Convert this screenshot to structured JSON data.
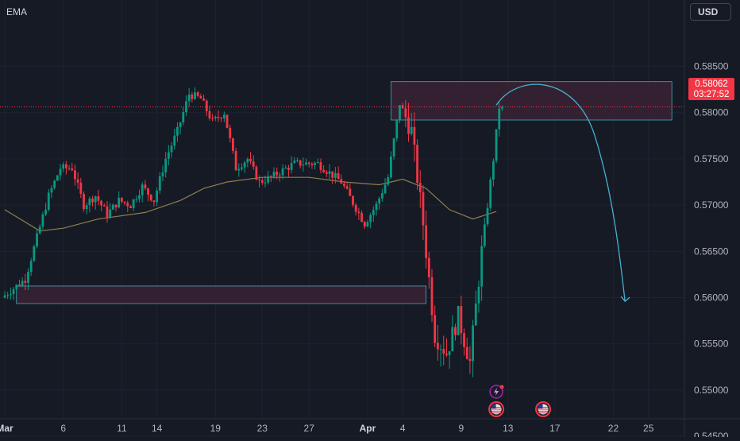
{
  "indicator_label": "EMA",
  "currency_button": "USD",
  "last_price": {
    "price": "0.58062",
    "countdown": "03:27:52"
  },
  "colors": {
    "background": "#161a25",
    "up": "#089981",
    "down": "#f23645",
    "ema": "#8c7f4f",
    "zone_fill": "#3d2437",
    "zone_stroke": "#4aa8b8",
    "projection": "#45b0d0",
    "grid": "#1f2331",
    "axis_text": "#b2b5be",
    "axis_line": "#2a2e39"
  },
  "event_icons": [
    {
      "name": "lightning-event-icon",
      "date": "Apr 12"
    },
    {
      "name": "us-flag-event-icon",
      "date": "Apr 12"
    },
    {
      "name": "us-flag-event-icon",
      "date": "Apr 16"
    }
  ],
  "chart_data": {
    "type": "candlestick",
    "symbol_indicator": "EMA",
    "y_axis": {
      "ticks": [
        "0.58500",
        "0.58000",
        "0.57500",
        "0.57000",
        "0.56500",
        "0.56000",
        "0.55500",
        "0.55000",
        "0.54500"
      ],
      "range": [
        0.5442,
        0.5885
      ]
    },
    "x_axis": {
      "ticks": [
        "Mar",
        "6",
        "11",
        "14",
        "19",
        "23",
        "27",
        "Apr",
        "4",
        "9",
        "13",
        "17",
        "22",
        "25"
      ],
      "range": [
        "Mar 1",
        "Apr 27"
      ]
    },
    "grid": true,
    "last_price_line": 0.58062,
    "zones": [
      {
        "y_top": 0.58335,
        "y_bottom": 0.5792,
        "x_start": "Apr 3",
        "x_end": "Apr 27"
      },
      {
        "y_top": 0.56125,
        "y_bottom": 0.55935,
        "x_start": "Mar 2",
        "x_end": "Apr 6"
      }
    ],
    "projection": [
      {
        "x": "Apr 12",
        "y": 0.5808
      },
      {
        "x": "Apr 15",
        "y": 0.5826
      },
      {
        "x": "Apr 23",
        "y": 0.5596
      }
    ],
    "ema": [
      {
        "x": "Mar 1",
        "y": 0.5695
      },
      {
        "x": "Mar 4",
        "y": 0.5672
      },
      {
        "x": "Mar 6",
        "y": 0.5675
      },
      {
        "x": "Mar 9",
        "y": 0.5685
      },
      {
        "x": "Mar 13",
        "y": 0.5692
      },
      {
        "x": "Mar 16",
        "y": 0.5705
      },
      {
        "x": "Mar 18",
        "y": 0.5718
      },
      {
        "x": "Mar 20",
        "y": 0.5725
      },
      {
        "x": "Mar 23",
        "y": 0.573
      },
      {
        "x": "Mar 27",
        "y": 0.573
      },
      {
        "x": "Mar 30",
        "y": 0.5725
      },
      {
        "x": "Apr 2",
        "y": 0.5722
      },
      {
        "x": "Apr 4",
        "y": 0.5728
      },
      {
        "x": "Apr 6",
        "y": 0.5718
      },
      {
        "x": "Apr 8",
        "y": 0.5695
      },
      {
        "x": "Apr 10",
        "y": 0.5685
      },
      {
        "x": "Apr 12",
        "y": 0.5693
      }
    ],
    "price_path": [
      {
        "x": "Mar 1",
        "y": 0.56
      },
      {
        "x": "Mar 3",
        "y": 0.562
      },
      {
        "x": "Mar 5",
        "y": 0.571
      },
      {
        "x": "Mar 6",
        "y": 0.574
      },
      {
        "x": "Mar 7",
        "y": 0.574
      },
      {
        "x": "Mar 8",
        "y": 0.57
      },
      {
        "x": "Mar 9",
        "y": 0.571
      },
      {
        "x": "Mar 10",
        "y": 0.569
      },
      {
        "x": "Mar 11",
        "y": 0.5705
      },
      {
        "x": "Mar 12",
        "y": 0.57
      },
      {
        "x": "Mar 13",
        "y": 0.572
      },
      {
        "x": "Mar 14",
        "y": 0.5705
      },
      {
        "x": "Mar 15",
        "y": 0.575
      },
      {
        "x": "Mar 16",
        "y": 0.578
      },
      {
        "x": "Mar 17",
        "y": 0.582
      },
      {
        "x": "Mar 18",
        "y": 0.5815
      },
      {
        "x": "Mar 19",
        "y": 0.579
      },
      {
        "x": "Mar 20",
        "y": 0.58
      },
      {
        "x": "Mar 21",
        "y": 0.574
      },
      {
        "x": "Mar 22",
        "y": 0.575
      },
      {
        "x": "Mar 23",
        "y": 0.5725
      },
      {
        "x": "Mar 24",
        "y": 0.573
      },
      {
        "x": "Mar 26",
        "y": 0.5745
      },
      {
        "x": "Mar 28",
        "y": 0.5745
      },
      {
        "x": "Mar 30",
        "y": 0.5725
      },
      {
        "x": "Apr 1",
        "y": 0.568
      },
      {
        "x": "Apr 2",
        "y": 0.57
      },
      {
        "x": "Apr 3",
        "y": 0.573
      },
      {
        "x": "Apr 4",
        "y": 0.581
      },
      {
        "x": "Apr 5",
        "y": 0.578
      },
      {
        "x": "Apr 6",
        "y": 0.568
      },
      {
        "x": "Apr 7",
        "y": 0.556
      },
      {
        "x": "Apr 8",
        "y": 0.554
      },
      {
        "x": "Apr 9",
        "y": 0.558
      },
      {
        "x": "Apr 10",
        "y": 0.553
      },
      {
        "x": "Apr 11",
        "y": 0.565
      },
      {
        "x": "Apr 12",
        "y": 0.575
      },
      {
        "x": "Apr 12.5",
        "y": 0.5806
      }
    ]
  }
}
